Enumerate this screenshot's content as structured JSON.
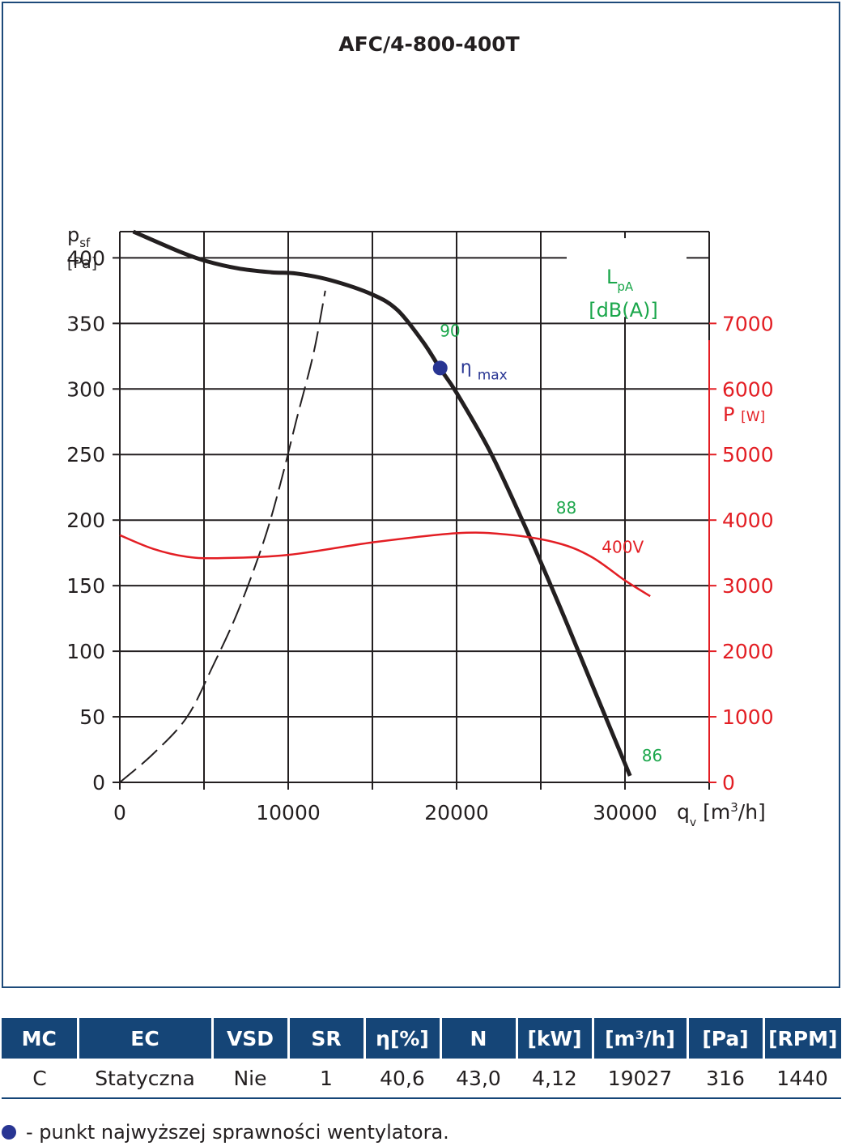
{
  "chart_data": {
    "type": "line",
    "title": "AFC/4-800-400T",
    "y_axis": {
      "label_main": "p",
      "label_sub": "sf",
      "unit": "[Pa]",
      "range": [
        0,
        420
      ],
      "ticks": [
        "0",
        "50",
        "100",
        "150",
        "200",
        "250",
        "300",
        "350",
        "400"
      ]
    },
    "x_axis": {
      "label_main": "q",
      "label_sub": "v",
      "unit_pre": "[m",
      "unit_sup": "3",
      "unit_post": "/h]",
      "range": [
        0,
        35000
      ],
      "ticks": [
        "0",
        "10000",
        "20000",
        "30000"
      ]
    },
    "y2_axis": {
      "label_main": "P",
      "unit": "[W]",
      "range": [
        0,
        8400
      ],
      "ticks": [
        "0",
        "1000",
        "2000",
        "3000",
        "4000",
        "5000",
        "6000",
        "7000"
      ],
      "color": "#e31e24"
    },
    "noise_label": {
      "main": "L",
      "sub": "pA",
      "unit": "[dB(A)]",
      "color": "#1aa64a"
    },
    "series": [
      {
        "id": "pressure",
        "color": "#231f20",
        "x": [
          800,
          3500,
          5000,
          7000,
          9000,
          10500,
          12500,
          15000,
          16500,
          18000,
          19000,
          20000,
          22000,
          24000,
          26000,
          28000,
          30300
        ],
        "y": [
          420,
          405,
          398,
          392,
          389,
          388,
          383,
          372,
          360,
          336,
          316,
          297,
          252,
          197,
          138,
          76,
          5
        ]
      },
      {
        "id": "system",
        "color": "#231f20",
        "dashed": true,
        "x": [
          0,
          2000,
          4000,
          5500,
          7000,
          8500,
          9500,
          10500,
          11500,
          12200
        ],
        "y": [
          0,
          22,
          50,
          88,
          130,
          182,
          226,
          277,
          327,
          375
        ]
      },
      {
        "id": "power",
        "name": "400V",
        "color": "#e31e24",
        "axis": "y2",
        "x": [
          0,
          2000,
          4000,
          6000,
          10000,
          15000,
          20000,
          23000,
          26000,
          28000,
          30000,
          31500
        ],
        "y": [
          3770,
          3560,
          3440,
          3420,
          3470,
          3660,
          3800,
          3780,
          3650,
          3440,
          3080,
          2840
        ]
      }
    ],
    "annotations": [
      {
        "text": "90",
        "x": 19000,
        "y": 340,
        "color": "#1aa64a"
      },
      {
        "text": "88",
        "x": 25900,
        "y": 205,
        "color": "#1aa64a"
      },
      {
        "text": "86",
        "x": 31000,
        "y": 16,
        "color": "#1aa64a"
      },
      {
        "text": "400V",
        "x": 31500,
        "y2": 3500,
        "color": "#e31e24"
      }
    ],
    "eta_max": {
      "x": 19027,
      "y": 316,
      "label_main": "η",
      "label_sub": "max",
      "color": "#283593"
    },
    "grid": true
  },
  "table": {
    "headers": [
      "MC",
      "EC",
      "VSD",
      "SR",
      "η[%]",
      "N",
      "[kW]",
      "[m³/h]",
      "[Pa]",
      "[RPM]"
    ],
    "row": [
      "C",
      "Statyczna",
      "Nie",
      "1",
      "40,6",
      "43,0",
      "4,12",
      "19027",
      "316",
      "1440"
    ]
  },
  "footnote": {
    "text": "- punkt najwyższej sprawności wentylatora.",
    "dot_color": "#283593"
  }
}
